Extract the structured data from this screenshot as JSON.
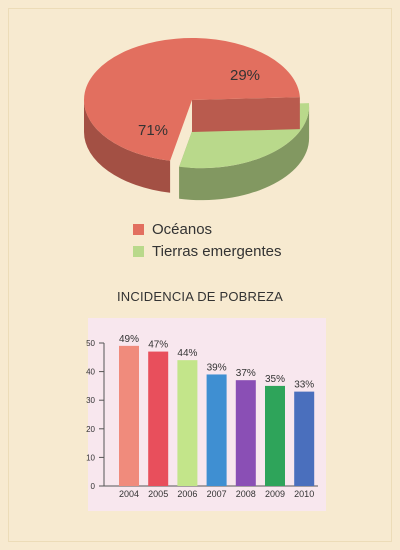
{
  "chart_data": [
    {
      "type": "pie",
      "slices": [
        {
          "label": "Océanos",
          "value": 71,
          "display": "71%",
          "color": "#e26f5f"
        },
        {
          "label": "Tierras emergentes",
          "value": 29,
          "display": "29%",
          "color": "#b9d98b"
        }
      ],
      "legend": "below"
    },
    {
      "type": "bar",
      "title": "INCIDENCIA DE POBREZA",
      "categories": [
        "2004",
        "2005",
        "2006",
        "2007",
        "2008",
        "2009",
        "2010"
      ],
      "values": [
        49,
        47,
        44,
        39,
        37,
        35,
        33
      ],
      "data_labels": [
        "49%",
        "47%",
        "44%",
        "39%",
        "37%",
        "35%",
        "33%"
      ],
      "colors": [
        "#f08b7c",
        "#e84f5c",
        "#c3e58a",
        "#3f8fd2",
        "#8a4fb5",
        "#2ea45a",
        "#4a6fbd"
      ],
      "ylim": [
        0,
        50
      ],
      "yticks": [
        "0",
        "10",
        "20",
        "30",
        "40",
        "50"
      ],
      "grid": false,
      "panel_color": "#f8e7ee"
    }
  ]
}
